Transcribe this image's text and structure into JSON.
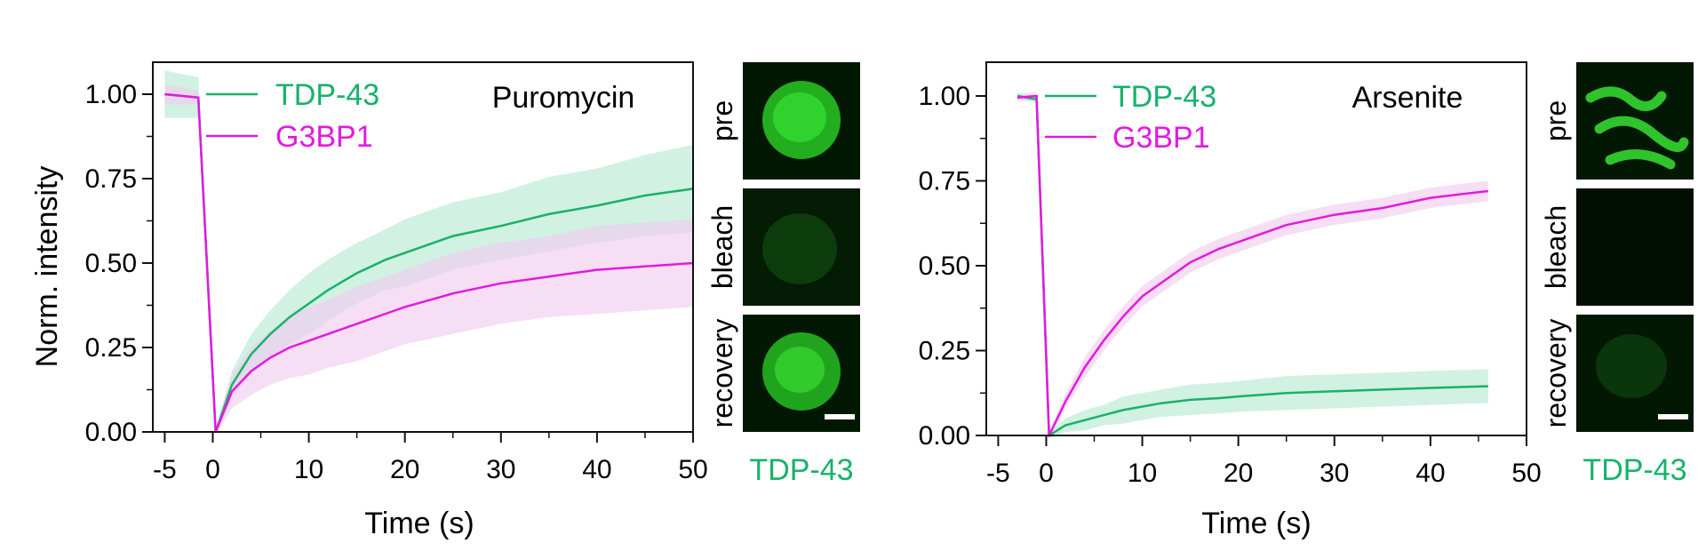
{
  "colors": {
    "tdp43": "#17b26a",
    "g3bp1": "#e21ae0",
    "tdp43_band": "#b8ead3",
    "g3bp1_band": "#f1cdef",
    "axis": "#111111",
    "micrograph_bg": "#031803",
    "micrograph_spot": "#2ee02a"
  },
  "image_labels": {
    "pre": "pre",
    "bleach": "bleach",
    "recovery": "recovery",
    "channel": "TDP-43"
  },
  "chart_data": [
    {
      "type": "line",
      "condition_label": "Puromycin",
      "xlabel": "Time (s)",
      "ylabel": "Norm. intensity",
      "xlim": [
        -6,
        50
      ],
      "ylim": [
        0,
        1.1
      ],
      "x_ticks": [
        "-5",
        "0",
        "10",
        "20",
        "30",
        "40",
        "50"
      ],
      "y_ticks": [
        "0.00",
        "0.25",
        "0.50",
        "0.75",
        "1.00"
      ],
      "legend_position": "top-left",
      "series": [
        {
          "name": "TDP-43",
          "color": "#17b26a",
          "x": [
            -5,
            -1.5,
            0.3,
            2,
            4,
            6,
            8,
            10,
            12,
            15,
            18,
            20,
            25,
            30,
            35,
            40,
            45,
            50
          ],
          "y": [
            1.0,
            0.99,
            0.0,
            0.14,
            0.23,
            0.29,
            0.34,
            0.38,
            0.42,
            0.47,
            0.51,
            0.53,
            0.58,
            0.61,
            0.645,
            0.67,
            0.7,
            0.72
          ],
          "band": [
            0.07,
            0.06,
            0.01,
            0.04,
            0.06,
            0.07,
            0.08,
            0.09,
            0.09,
            0.09,
            0.09,
            0.1,
            0.1,
            0.1,
            0.11,
            0.11,
            0.12,
            0.13
          ]
        },
        {
          "name": "G3BP1",
          "color": "#e21ae0",
          "x": [
            -5,
            -1.5,
            0.3,
            2,
            4,
            6,
            8,
            10,
            12,
            15,
            18,
            20,
            25,
            30,
            35,
            40,
            45,
            50
          ],
          "y": [
            1.0,
            0.99,
            0.0,
            0.12,
            0.18,
            0.22,
            0.25,
            0.27,
            0.29,
            0.32,
            0.35,
            0.37,
            0.41,
            0.44,
            0.46,
            0.48,
            0.49,
            0.5
          ],
          "band": [
            0.03,
            0.02,
            0.01,
            0.05,
            0.07,
            0.08,
            0.09,
            0.1,
            0.1,
            0.11,
            0.11,
            0.11,
            0.12,
            0.12,
            0.12,
            0.13,
            0.13,
            0.13
          ]
        }
      ]
    },
    {
      "type": "line",
      "condition_label": "Arsenite",
      "xlabel": "Time (s)",
      "ylabel": "",
      "xlim": [
        -6,
        50
      ],
      "ylim": [
        0,
        1.1
      ],
      "x_ticks": [
        "-5",
        "0",
        "10",
        "20",
        "30",
        "40",
        "50"
      ],
      "y_ticks": [
        "0.00",
        "0.25",
        "0.50",
        "0.75",
        "1.00"
      ],
      "legend_position": "top-left",
      "series": [
        {
          "name": "TDP-43",
          "color": "#17b26a",
          "x": [
            -3,
            -1,
            0.3,
            2,
            4,
            6,
            8,
            10,
            12,
            15,
            18,
            20,
            25,
            30,
            35,
            40,
            46
          ],
          "y": [
            1.0,
            0.99,
            0.0,
            0.03,
            0.045,
            0.06,
            0.075,
            0.085,
            0.095,
            0.105,
            0.11,
            0.115,
            0.125,
            0.13,
            0.135,
            0.14,
            0.145
          ],
          "band": [
            0.01,
            0.01,
            0.01,
            0.02,
            0.03,
            0.03,
            0.04,
            0.04,
            0.04,
            0.045,
            0.045,
            0.045,
            0.05,
            0.05,
            0.05,
            0.05,
            0.05
          ]
        },
        {
          "name": "G3BP1",
          "color": "#e21ae0",
          "x": [
            -3,
            -1,
            0.3,
            2,
            4,
            6,
            8,
            10,
            12,
            15,
            18,
            20,
            25,
            30,
            35,
            40,
            46
          ],
          "y": [
            0.995,
            1.0,
            0.0,
            0.1,
            0.2,
            0.28,
            0.35,
            0.41,
            0.45,
            0.51,
            0.55,
            0.57,
            0.62,
            0.65,
            0.67,
            0.7,
            0.72
          ],
          "band": [
            0.01,
            0.01,
            0.01,
            0.02,
            0.03,
            0.03,
            0.03,
            0.03,
            0.03,
            0.03,
            0.03,
            0.03,
            0.03,
            0.03,
            0.03,
            0.03,
            0.03
          ]
        }
      ]
    }
  ]
}
